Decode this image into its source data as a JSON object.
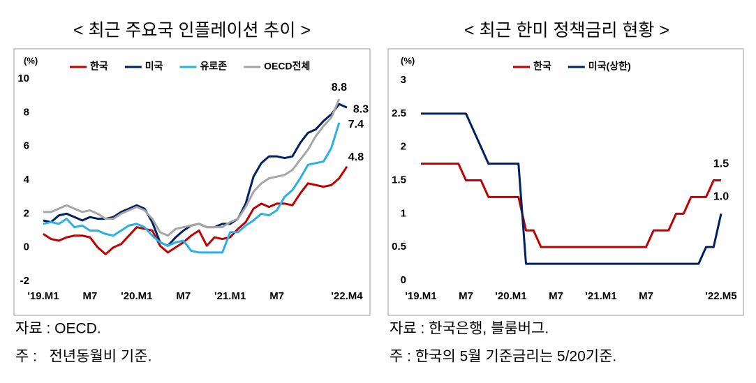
{
  "chart_data": [
    {
      "type": "line",
      "title": "< 최근 주요국 인플레이션 추이 >",
      "y_label": "(%)",
      "categories": [
        "'19.M1",
        null,
        null,
        null,
        null,
        null,
        "M7",
        null,
        null,
        null,
        null,
        null,
        "'20.M1",
        null,
        null,
        null,
        null,
        null,
        "M7",
        null,
        null,
        null,
        null,
        null,
        "'21.M1",
        null,
        null,
        null,
        null,
        null,
        "M7",
        null,
        null,
        null,
        null,
        null,
        null,
        null,
        null,
        "'22.M4"
      ],
      "series": [
        {
          "name": "한국",
          "color": "#c00000",
          "values": [
            0.8,
            0.5,
            0.4,
            0.6,
            0.7,
            0.7,
            0.6,
            0.0,
            -0.4,
            0.0,
            0.2,
            0.7,
            1.2,
            1.1,
            1.0,
            0.1,
            -0.3,
            0.0,
            0.3,
            0.7,
            1.0,
            0.1,
            0.6,
            0.5,
            0.6,
            1.1,
            1.5,
            2.3,
            2.6,
            2.4,
            2.6,
            2.6,
            2.5,
            3.2,
            3.8,
            3.7,
            3.6,
            3.7,
            4.1,
            4.8
          ],
          "value_labels": [
            null,
            null,
            null,
            null,
            null,
            null,
            null,
            null,
            null,
            null,
            null,
            null,
            null,
            null,
            null,
            null,
            null,
            null,
            null,
            null,
            null,
            null,
            null,
            null,
            null,
            null,
            null,
            null,
            null,
            null,
            null,
            null,
            null,
            null,
            null,
            null,
            null,
            null,
            null,
            "4.8"
          ]
        },
        {
          "name": "미국",
          "color": "#002060",
          "values": [
            1.6,
            1.5,
            1.9,
            2.0,
            1.8,
            1.6,
            1.8,
            1.7,
            1.7,
            1.8,
            2.1,
            2.3,
            2.5,
            2.3,
            1.5,
            0.3,
            0.1,
            0.6,
            1.0,
            1.3,
            1.4,
            1.2,
            1.2,
            1.4,
            1.4,
            1.7,
            2.6,
            4.2,
            5.0,
            5.4,
            5.4,
            5.3,
            5.4,
            6.2,
            6.8,
            7.0,
            7.5,
            7.9,
            8.5,
            8.3
          ],
          "value_labels": [
            null,
            null,
            null,
            null,
            null,
            null,
            null,
            null,
            null,
            null,
            null,
            null,
            null,
            null,
            null,
            null,
            null,
            null,
            null,
            null,
            null,
            null,
            null,
            null,
            null,
            null,
            null,
            null,
            null,
            null,
            null,
            null,
            null,
            null,
            null,
            null,
            null,
            null,
            null,
            "8.3"
          ]
        },
        {
          "name": "유로존",
          "color": "#29b0e6",
          "values": [
            1.4,
            1.5,
            1.4,
            1.7,
            1.2,
            1.3,
            1.0,
            1.0,
            0.8,
            0.7,
            1.0,
            1.3,
            1.4,
            1.2,
            0.7,
            0.3,
            0.1,
            0.3,
            0.4,
            -0.2,
            -0.3,
            -0.3,
            -0.3,
            -0.3,
            0.9,
            0.9,
            1.3,
            1.6,
            2.0,
            1.9,
            2.2,
            3.0,
            3.4,
            4.1,
            4.9,
            5.0,
            5.1,
            5.9,
            7.4,
            null
          ],
          "value_labels": [
            null,
            null,
            null,
            null,
            null,
            null,
            null,
            null,
            null,
            null,
            null,
            null,
            null,
            null,
            null,
            null,
            null,
            null,
            null,
            null,
            null,
            null,
            null,
            null,
            null,
            null,
            null,
            null,
            null,
            null,
            null,
            null,
            null,
            null,
            null,
            null,
            null,
            null,
            "7.4",
            null
          ]
        },
        {
          "name": "OECD전체",
          "color": "#a6a6a6",
          "values": [
            2.1,
            2.1,
            2.3,
            2.5,
            2.3,
            2.1,
            2.2,
            2.0,
            1.7,
            1.7,
            2.0,
            2.2,
            2.4,
            2.2,
            1.7,
            0.9,
            0.7,
            1.1,
            1.2,
            1.3,
            1.4,
            1.2,
            1.2,
            1.2,
            1.5,
            1.7,
            2.4,
            3.3,
            3.8,
            4.1,
            4.2,
            4.3,
            4.6,
            5.2,
            5.8,
            6.6,
            7.2,
            7.7,
            8.8,
            null
          ],
          "value_labels": [
            null,
            null,
            null,
            null,
            null,
            null,
            null,
            null,
            null,
            null,
            null,
            null,
            null,
            null,
            null,
            null,
            null,
            null,
            null,
            null,
            null,
            null,
            null,
            null,
            null,
            null,
            null,
            null,
            null,
            null,
            null,
            null,
            null,
            null,
            null,
            null,
            null,
            null,
            "8.8",
            null
          ]
        }
      ],
      "ylim": [
        -2,
        10
      ],
      "yticks": [
        -2,
        0,
        2,
        4,
        6,
        8,
        10
      ],
      "grid": false,
      "legend": "top",
      "notes": [
        "자료 : OECD.",
        "주 :   전년동월비 기준."
      ]
    },
    {
      "type": "line",
      "title": "< 최근 한미 정책금리 현황 >",
      "y_label": "(%)",
      "categories": [
        "'19.M1",
        null,
        null,
        null,
        null,
        null,
        "M7",
        null,
        null,
        null,
        null,
        null,
        "'20.M1",
        null,
        null,
        null,
        null,
        null,
        "M7",
        null,
        null,
        null,
        null,
        null,
        "'21.M1",
        null,
        null,
        null,
        null,
        null,
        "M7",
        null,
        null,
        null,
        null,
        null,
        null,
        null,
        null,
        null,
        "'22.M5"
      ],
      "series": [
        {
          "name": "한국",
          "color": "#c00000",
          "values": [
            1.75,
            1.75,
            1.75,
            1.75,
            1.75,
            1.75,
            1.5,
            1.5,
            1.5,
            1.25,
            1.25,
            1.25,
            1.25,
            1.25,
            0.75,
            0.75,
            0.5,
            0.5,
            0.5,
            0.5,
            0.5,
            0.5,
            0.5,
            0.5,
            0.5,
            0.5,
            0.5,
            0.5,
            0.5,
            0.5,
            0.5,
            0.75,
            0.75,
            0.75,
            1.0,
            1.0,
            1.25,
            1.25,
            1.25,
            1.5,
            1.5
          ],
          "value_labels": [
            null,
            null,
            null,
            null,
            null,
            null,
            null,
            null,
            null,
            null,
            null,
            null,
            null,
            null,
            null,
            null,
            null,
            null,
            null,
            null,
            null,
            null,
            null,
            null,
            null,
            null,
            null,
            null,
            null,
            null,
            null,
            null,
            null,
            null,
            null,
            null,
            null,
            null,
            null,
            null,
            "1.5"
          ]
        },
        {
          "name": "미국(상한)",
          "color": "#002060",
          "values": [
            2.5,
            2.5,
            2.5,
            2.5,
            2.5,
            2.5,
            2.5,
            2.25,
            2.0,
            1.75,
            1.75,
            1.75,
            1.75,
            1.75,
            0.25,
            0.25,
            0.25,
            0.25,
            0.25,
            0.25,
            0.25,
            0.25,
            0.25,
            0.25,
            0.25,
            0.25,
            0.25,
            0.25,
            0.25,
            0.25,
            0.25,
            0.25,
            0.25,
            0.25,
            0.25,
            0.25,
            0.25,
            0.25,
            0.5,
            0.5,
            1.0
          ],
          "value_labels": [
            null,
            null,
            null,
            null,
            null,
            null,
            null,
            null,
            null,
            null,
            null,
            null,
            null,
            null,
            null,
            null,
            null,
            null,
            null,
            null,
            null,
            null,
            null,
            null,
            null,
            null,
            null,
            null,
            null,
            null,
            null,
            null,
            null,
            null,
            null,
            null,
            null,
            null,
            null,
            null,
            "1.0"
          ]
        }
      ],
      "ylim": [
        0,
        3
      ],
      "yticks": [
        0,
        0.5,
        1,
        1.5,
        2,
        2.5,
        3
      ],
      "grid": false,
      "legend": "top",
      "notes": [
        "자료 : 한국은행, 블룸버그.",
        "주 : 한국의 5월 기준금리는 5/20기준."
      ]
    }
  ]
}
